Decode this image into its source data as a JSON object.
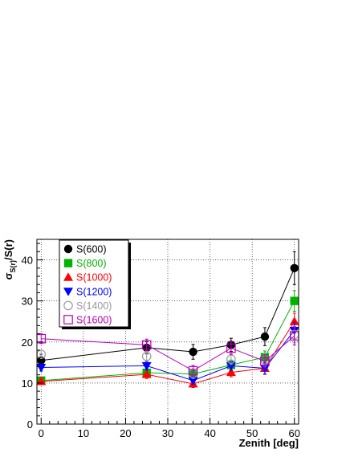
{
  "chart_data": {
    "type": "scatter",
    "title": "",
    "xlabel": "Zenith [deg]",
    "ylabel": "σ_S(r)/S(r)",
    "ylabel_parts": {
      "main": "σ",
      "sub": "S(r)",
      "rest": "/S(r)"
    },
    "xlim": [
      -1,
      61
    ],
    "ylim": [
      0,
      45
    ],
    "x_ticks": [
      0,
      10,
      20,
      30,
      40,
      50,
      60
    ],
    "y_ticks": [
      0,
      10,
      20,
      30,
      40
    ],
    "grid": true,
    "legend_position": "top-left",
    "x": [
      0,
      25,
      36,
      45,
      53,
      60
    ],
    "series": [
      {
        "name": "S(600)",
        "color": "#000000",
        "marker": "filled-circle",
        "connected": true,
        "values": [
          15.5,
          18.6,
          17.6,
          19.3,
          21.3,
          38.0
        ],
        "errors": [
          1.5,
          1.5,
          1.8,
          1.6,
          2.2,
          4.0
        ]
      },
      {
        "name": "S(800)",
        "color": "#00b300",
        "marker": "filled-square",
        "connected": true,
        "values": [
          10.6,
          12.5,
          12.2,
          14.4,
          16.3,
          30.0
        ],
        "errors": [
          0.8,
          1.0,
          1.0,
          1.2,
          1.5,
          2.5
        ]
      },
      {
        "name": "S(1000)",
        "color": "#ff0000",
        "marker": "filled-triangle-up",
        "connected": true,
        "values": [
          10.4,
          12.1,
          9.8,
          12.6,
          13.6,
          25.0
        ],
        "errors": [
          0.8,
          1.0,
          0.9,
          1.1,
          1.5,
          2.0
        ]
      },
      {
        "name": "S(1200)",
        "color": "#0000ff",
        "marker": "filled-triangle-down",
        "connected": true,
        "values": [
          13.8,
          14.2,
          10.6,
          14.2,
          13.6,
          22.8
        ],
        "errors": [
          0.9,
          1.0,
          0.9,
          1.1,
          1.4,
          2.0
        ]
      },
      {
        "name": "S(1400)",
        "color": "#999999",
        "marker": "open-circle",
        "connected": false,
        "values": [
          17.0,
          16.5,
          12.3,
          15.8,
          15.6,
          21.8
        ],
        "errors": [
          1.0,
          1.2,
          1.2,
          1.3,
          1.5,
          2.0
        ]
      },
      {
        "name": "S(1600)",
        "color": "#bb00bb",
        "marker": "open-square",
        "connected": true,
        "values": [
          20.8,
          19.3,
          13.0,
          18.5,
          15.3,
          21.5
        ],
        "errors": [
          1.2,
          1.4,
          1.3,
          1.5,
          1.6,
          2.2
        ]
      }
    ]
  }
}
